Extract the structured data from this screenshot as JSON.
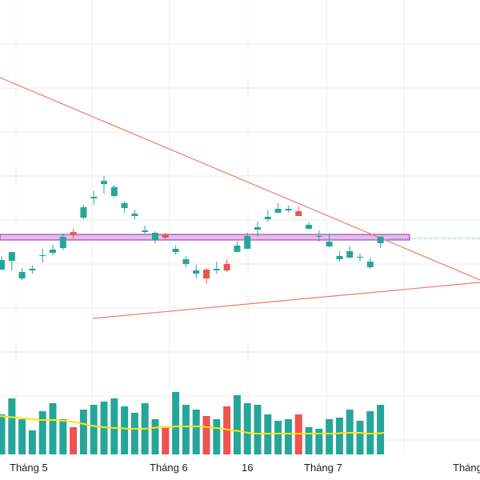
{
  "chart_data": {
    "type": "candlestick",
    "x_ticks": [
      "Tháng 5",
      "Tháng 6",
      "16",
      "Tháng 7",
      "Tháng"
    ],
    "grid": true,
    "colors": {
      "up": "#26a69a",
      "down": "#ef5350",
      "trendline": "#f07a63",
      "zone_stroke": "#9c27b0",
      "zone_fill": "#e1bee7",
      "volume_ma": "#ffe30a",
      "price_line": "#26a69a",
      "grid": "#eeeeee"
    },
    "candles": [
      {
        "o": 263,
        "h": 280,
        "l": 262,
        "c": 275,
        "v": 25
      },
      {
        "o": 274,
        "h": 285,
        "l": 262,
        "c": 285,
        "v": 35
      },
      {
        "o": 252,
        "h": 265,
        "l": 250,
        "c": 260,
        "v": 22
      },
      {
        "o": 262,
        "h": 268,
        "l": 258,
        "c": 264,
        "v": 15
      },
      {
        "o": 280,
        "h": 289,
        "l": 272,
        "c": 281,
        "v": 27
      },
      {
        "o": 284,
        "h": 294,
        "l": 281,
        "c": 288,
        "v": 32
      },
      {
        "o": 290,
        "h": 308,
        "l": 287,
        "c": 304,
        "v": 22
      },
      {
        "o": 310,
        "h": 314,
        "l": 302,
        "c": 306,
        "v": 17
      },
      {
        "o": 328,
        "h": 344,
        "l": 326,
        "c": 341,
        "v": 28
      },
      {
        "o": 352,
        "h": 361,
        "l": 344,
        "c": 354,
        "v": 31
      },
      {
        "o": 370,
        "h": 380,
        "l": 358,
        "c": 374,
        "v": 33
      },
      {
        "o": 355,
        "h": 369,
        "l": 353,
        "c": 366,
        "v": 35
      },
      {
        "o": 340,
        "h": 348,
        "l": 334,
        "c": 346,
        "v": 30
      },
      {
        "o": 330,
        "h": 338,
        "l": 326,
        "c": 333,
        "v": 26
      },
      {
        "o": 310,
        "h": 318,
        "l": 308,
        "c": 312,
        "v": 32
      },
      {
        "o": 300,
        "h": 311,
        "l": 296,
        "c": 309,
        "v": 22
      },
      {
        "o": 307,
        "h": 309,
        "l": 301,
        "c": 303,
        "v": 17
      },
      {
        "o": 285,
        "h": 293,
        "l": 282,
        "c": 289,
        "v": 39
      },
      {
        "o": 270,
        "h": 280,
        "l": 266,
        "c": 276,
        "v": 31
      },
      {
        "o": 258,
        "h": 269,
        "l": 252,
        "c": 262,
        "v": 28
      },
      {
        "o": 263,
        "h": 265,
        "l": 245,
        "c": 252,
        "v": 24
      },
      {
        "o": 262,
        "h": 273,
        "l": 258,
        "c": 264,
        "v": 22
      },
      {
        "o": 270,
        "h": 276,
        "l": 260,
        "c": 262,
        "v": 30
      },
      {
        "o": 285,
        "h": 298,
        "l": 285,
        "c": 293,
        "v": 37
      },
      {
        "o": 289,
        "h": 309,
        "l": 289,
        "c": 305,
        "v": 32
      },
      {
        "o": 313,
        "h": 323,
        "l": 305,
        "c": 316,
        "v": 31
      },
      {
        "o": 326,
        "h": 337,
        "l": 323,
        "c": 329,
        "v": 25
      },
      {
        "o": 334,
        "h": 346,
        "l": 334,
        "c": 339,
        "v": 21
      },
      {
        "o": 337,
        "h": 343,
        "l": 335,
        "c": 339,
        "v": 22
      },
      {
        "o": 336,
        "h": 342,
        "l": 330,
        "c": 330,
        "v": 25
      },
      {
        "o": 314,
        "h": 322,
        "l": 313,
        "c": 319,
        "v": 17
      },
      {
        "o": 304,
        "h": 312,
        "l": 298,
        "c": 305,
        "v": 16
      },
      {
        "o": 292,
        "h": 308,
        "l": 291,
        "c": 298,
        "v": 22
      },
      {
        "o": 276,
        "h": 286,
        "l": 273,
        "c": 280,
        "v": 23
      },
      {
        "o": 278,
        "h": 292,
        "l": 277,
        "c": 286,
        "v": 28
      },
      {
        "o": 278,
        "h": 283,
        "l": 273,
        "c": 279,
        "v": 21
      },
      {
        "o": 266,
        "h": 278,
        "l": 264,
        "c": 273,
        "v": 27
      },
      {
        "o": 296,
        "h": 305,
        "l": 290,
        "c": 304,
        "v": 31
      }
    ],
    "volume_ma": [
      48,
      47,
      46,
      45,
      44,
      43,
      43,
      43,
      42,
      41,
      39,
      37,
      35,
      34,
      33,
      33,
      32,
      32,
      32,
      33,
      34,
      34,
      35,
      35,
      35,
      35,
      34,
      33,
      32,
      30,
      29,
      27,
      26,
      26,
      26,
      26,
      26,
      26,
      26,
      26,
      26,
      26,
      26,
      27,
      27,
      27,
      26,
      26,
      27
    ]
  }
}
